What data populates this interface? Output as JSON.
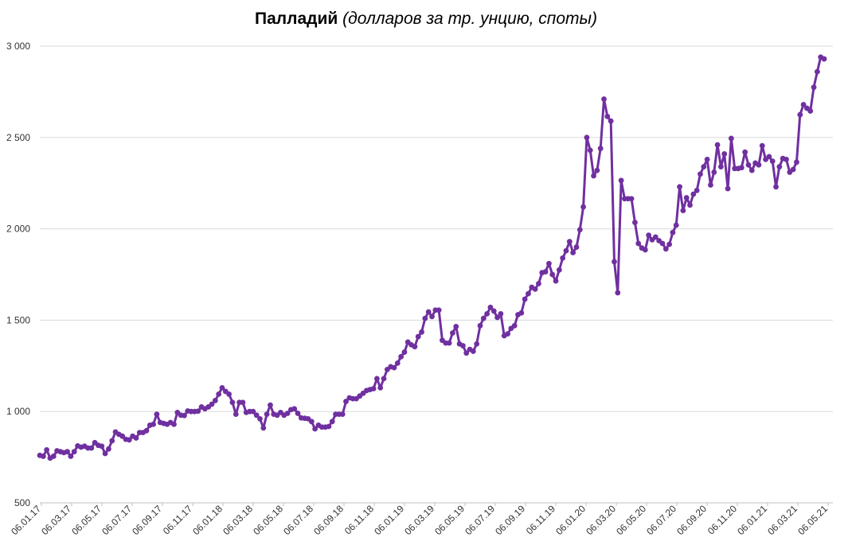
{
  "title": {
    "main": "Палладий",
    "sub": "(долларов за тр. унцию, споты)"
  },
  "chart_data": {
    "type": "line",
    "title": "Палладий (долларов за тр. унцию, споты)",
    "xlabel": "",
    "ylabel": "",
    "ylim": [
      500,
      3000
    ],
    "yticks": [
      500,
      1000,
      1500,
      2000,
      2500,
      3000
    ],
    "ytick_labels": [
      "500",
      "1 000",
      "1 500",
      "2 000",
      "2 500",
      "3 000"
    ],
    "xtick_labels": [
      "06.01.17",
      "06.03.17",
      "06.05.17",
      "06.07.17",
      "06.09.17",
      "06.11.17",
      "06.01.18",
      "06.03.18",
      "06.05.18",
      "06.07.18",
      "06.09.18",
      "06.11.18",
      "06.01.19",
      "06.03.19",
      "06.05.19",
      "06.07.19",
      "06.09.19",
      "06.11.19",
      "06.01.20",
      "06.03.20",
      "06.05.20",
      "06.07.20",
      "06.09.20",
      "06.11.20",
      "06.01.21",
      "06.03.21",
      "06.05.21"
    ],
    "grid": "horizontal",
    "legend": "none",
    "color": "#7030a0",
    "series": [
      {
        "name": "",
        "values": [
          760,
          755,
          790,
          745,
          755,
          785,
          780,
          775,
          780,
          755,
          780,
          812,
          805,
          810,
          800,
          800,
          830,
          815,
          810,
          770,
          795,
          840,
          888,
          875,
          865,
          848,
          845,
          865,
          855,
          885,
          885,
          895,
          925,
          930,
          985,
          940,
          935,
          930,
          940,
          930,
          995,
          980,
          978,
          1003,
          1000,
          1000,
          1002,
          1025,
          1015,
          1025,
          1040,
          1060,
          1095,
          1130,
          1110,
          1095,
          1050,
          985,
          1050,
          1050,
          995,
          1000,
          1000,
          980,
          960,
          910,
          985,
          1035,
          985,
          980,
          995,
          980,
          990,
          1010,
          1015,
          990,
          965,
          963,
          960,
          945,
          905,
          925,
          915,
          915,
          918,
          945,
          985,
          985,
          985,
          1055,
          1075,
          1070,
          1070,
          1085,
          1100,
          1115,
          1120,
          1125,
          1180,
          1130,
          1180,
          1230,
          1245,
          1240,
          1265,
          1300,
          1325,
          1380,
          1365,
          1355,
          1410,
          1435,
          1510,
          1545,
          1520,
          1555,
          1555,
          1390,
          1375,
          1375,
          1430,
          1465,
          1370,
          1360,
          1320,
          1340,
          1330,
          1370,
          1470,
          1510,
          1535,
          1570,
          1550,
          1515,
          1535,
          1415,
          1425,
          1455,
          1470,
          1530,
          1540,
          1615,
          1645,
          1680,
          1670,
          1700,
          1760,
          1765,
          1810,
          1750,
          1715,
          1775,
          1840,
          1880,
          1930,
          1870,
          1900,
          1995,
          2120,
          2500,
          2430,
          2290,
          2320,
          2440,
          2710,
          2615,
          2590,
          1820,
          1650,
          2265,
          2165,
          2165,
          2165,
          2035,
          1920,
          1895,
          1885,
          1965,
          1940,
          1955,
          1935,
          1920,
          1890,
          1915,
          1980,
          2020,
          2230,
          2100,
          2170,
          2130,
          2190,
          2210,
          2300,
          2340,
          2380,
          2240,
          2310,
          2460,
          2340,
          2410,
          2220,
          2495,
          2330,
          2330,
          2335,
          2420,
          2350,
          2320,
          2360,
          2350,
          2455,
          2380,
          2395,
          2370,
          2230,
          2340,
          2385,
          2380,
          2310,
          2325,
          2365,
          2625,
          2680,
          2660,
          2645,
          2775,
          2860,
          2940,
          2930
        ]
      }
    ]
  }
}
